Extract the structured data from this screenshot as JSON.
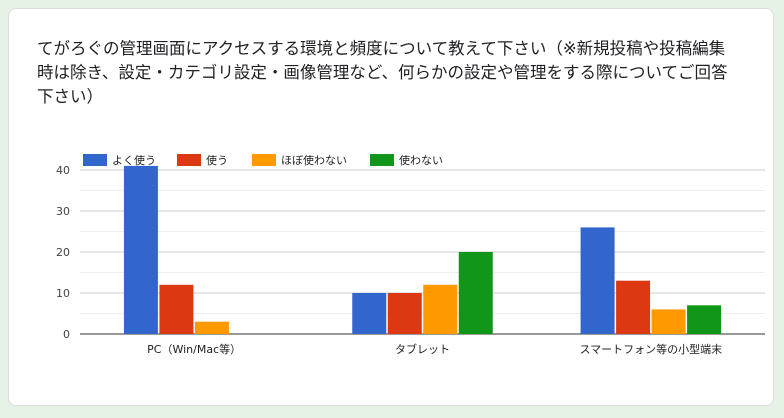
{
  "question": {
    "title": "てがろぐの管理画面にアクセスする環境と頻度について教えて下さい（※新規投稿や投稿編集時は除き、設定・カテゴリ設定・画像管理など、何らかの設定や管理をする際についてご回答下さい）"
  },
  "chart_data": {
    "type": "bar",
    "categories": [
      "PC（Win/Mac等）",
      "タブレット",
      "スマートフォン等の小型端末"
    ],
    "series": [
      {
        "name": "よく使う",
        "values": [
          41,
          10,
          26
        ],
        "color": "#3366cc"
      },
      {
        "name": "使う",
        "values": [
          12,
          10,
          13
        ],
        "color": "#dc3912"
      },
      {
        "name": "ほぼ使わない",
        "values": [
          3,
          12,
          6
        ],
        "color": "#ff9900"
      },
      {
        "name": "使わない",
        "values": [
          0,
          20,
          7
        ],
        "color": "#109618"
      }
    ],
    "yticks": [
      0,
      10,
      20,
      30,
      40
    ],
    "ylim": [
      0,
      42
    ],
    "grid": true,
    "legend": "top-left"
  }
}
